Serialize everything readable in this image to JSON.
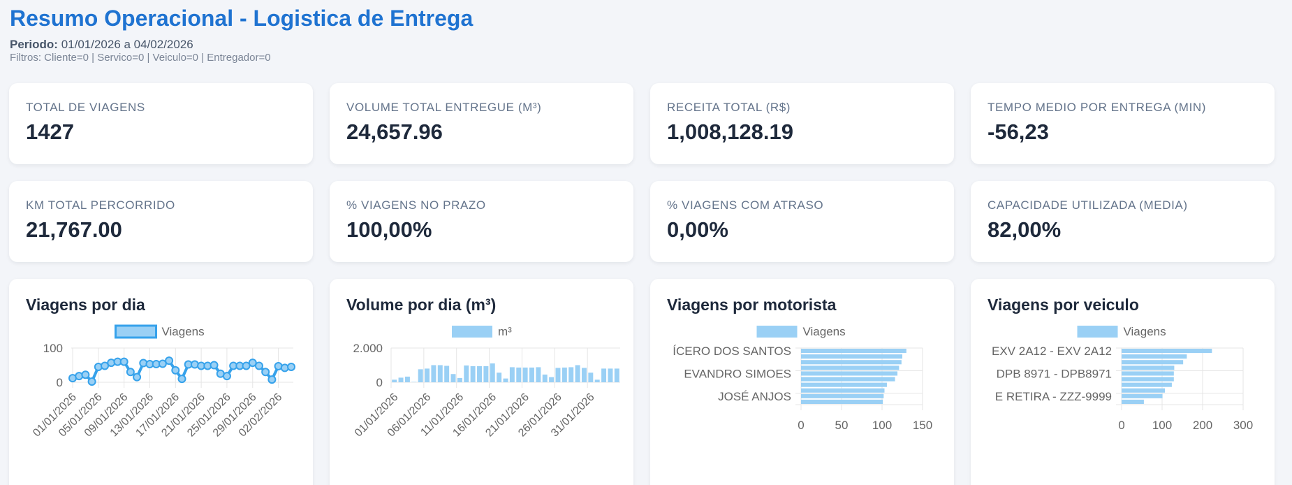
{
  "header": {
    "title": "Resumo Operacional - Logistica de Entrega",
    "period_label": "Periodo:",
    "period_value": "01/01/2026 a 04/02/2026",
    "filters": "Filtros: Cliente=0 | Servico=0 | Veiculo=0 | Entregador=0"
  },
  "kpis": [
    {
      "label": "TOTAL DE VIAGENS",
      "value": "1427"
    },
    {
      "label": "VOLUME TOTAL ENTREGUE (M³)",
      "value": "24,657.96"
    },
    {
      "label": "RECEITA TOTAL (R$)",
      "value": "1,008,128.19"
    },
    {
      "label": "TEMPO MEDIO POR ENTREGA (MIN)",
      "value": "-56,23"
    },
    {
      "label": "KM TOTAL PERCORRIDO",
      "value": "21,767.00"
    },
    {
      "label": "% VIAGENS NO PRAZO",
      "value": "100,00%"
    },
    {
      "label": "% VIAGENS COM ATRASO",
      "value": "0,00%"
    },
    {
      "label": "CAPACIDADE UTILIZADA (MEDIA)",
      "value": "82,00%"
    }
  ],
  "colors": {
    "accent": "#1f73d1",
    "series_line": "#36a2eb",
    "series_fill": "#9ad0f5",
    "background": "#f3f5f9"
  },
  "chart_data": [
    {
      "type": "line",
      "title": "Viagens por dia",
      "legend": [
        "Viagens"
      ],
      "legend_position": "top",
      "xlabel": "",
      "ylabel": "",
      "ylim": [
        0,
        100
      ],
      "yticks": [
        "0",
        "100"
      ],
      "grid": true,
      "x_tick_labels": [
        "01/01/2026",
        "05/01/2026",
        "09/01/2026",
        "13/01/2026",
        "17/01/2026",
        "21/01/2026",
        "25/01/2026",
        "29/01/2026",
        "02/02/2026"
      ],
      "x": [
        "01/01/2026",
        "02/01/2026",
        "03/01/2026",
        "04/01/2026",
        "05/01/2026",
        "06/01/2026",
        "07/01/2026",
        "08/01/2026",
        "09/01/2026",
        "10/01/2026",
        "11/01/2026",
        "12/01/2026",
        "13/01/2026",
        "14/01/2026",
        "15/01/2026",
        "16/01/2026",
        "17/01/2026",
        "18/01/2026",
        "19/01/2026",
        "20/01/2026",
        "21/01/2026",
        "22/01/2026",
        "23/01/2026",
        "24/01/2026",
        "25/01/2026",
        "26/01/2026",
        "27/01/2026",
        "28/01/2026",
        "29/01/2026",
        "30/01/2026",
        "31/01/2026",
        "01/02/2026",
        "02/02/2026",
        "03/02/2026",
        "04/02/2026"
      ],
      "series": [
        {
          "name": "Viagens",
          "values": [
            12,
            18,
            22,
            2,
            45,
            48,
            57,
            60,
            60,
            30,
            15,
            56,
            53,
            53,
            54,
            63,
            35,
            10,
            52,
            52,
            48,
            48,
            50,
            25,
            18,
            48,
            48,
            48,
            57,
            48,
            30,
            8,
            47,
            42,
            45
          ]
        }
      ]
    },
    {
      "type": "bar",
      "title": "Volume por dia (m³)",
      "legend": [
        "m³"
      ],
      "legend_position": "top",
      "xlabel": "",
      "ylabel": "",
      "ylim": [
        0,
        2000
      ],
      "yticks": [
        "0",
        "2.000"
      ],
      "grid": true,
      "x_tick_labels": [
        "01/01/2026",
        "06/01/2026",
        "11/01/2026",
        "16/01/2026",
        "21/01/2026",
        "26/01/2026",
        "31/01/2026"
      ],
      "x": [
        "01/01/2026",
        "02/01/2026",
        "03/01/2026",
        "04/01/2026",
        "05/01/2026",
        "06/01/2026",
        "07/01/2026",
        "08/01/2026",
        "09/01/2026",
        "10/01/2026",
        "11/01/2026",
        "12/01/2026",
        "13/01/2026",
        "14/01/2026",
        "15/01/2026",
        "16/01/2026",
        "17/01/2026",
        "18/01/2026",
        "19/01/2026",
        "20/01/2026",
        "21/01/2026",
        "22/01/2026",
        "23/01/2026",
        "24/01/2026",
        "25/01/2026",
        "26/01/2026",
        "27/01/2026",
        "28/01/2026",
        "29/01/2026",
        "30/01/2026",
        "31/01/2026",
        "01/02/2026",
        "02/02/2026",
        "03/02/2026",
        "04/02/2026"
      ],
      "series": [
        {
          "name": "m³",
          "values": [
            150,
            270,
            330,
            20,
            760,
            800,
            1000,
            1000,
            960,
            480,
            250,
            980,
            940,
            940,
            940,
            1100,
            560,
            220,
            880,
            860,
            860,
            860,
            880,
            450,
            300,
            840,
            860,
            880,
            1000,
            840,
            560,
            150,
            800,
            800,
            800
          ]
        }
      ]
    },
    {
      "type": "bar",
      "orientation": "horizontal",
      "title": "Viagens por motorista",
      "legend": [
        "Viagens"
      ],
      "legend_position": "top",
      "xlim": [
        0,
        150
      ],
      "xticks": [
        "0",
        "50",
        "100",
        "150"
      ],
      "grid": true,
      "y_tick_labels": [
        "ÍCERO DOS SANTOS",
        "EVANDRO SIMOES",
        "JOSÉ ANJOS"
      ],
      "y_tick_label_indices": [
        0,
        4,
        8
      ],
      "series": [
        {
          "name": "Viagens",
          "values": [
            130,
            125,
            124,
            121,
            119,
            116,
            106,
            103,
            102,
            101
          ]
        }
      ]
    },
    {
      "type": "bar",
      "orientation": "horizontal",
      "title": "Viagens por veiculo",
      "legend": [
        "Viagens"
      ],
      "legend_position": "top",
      "xlim": [
        0,
        300
      ],
      "xticks": [
        "0",
        "100",
        "200",
        "300"
      ],
      "grid": true,
      "y_tick_labels": [
        "EXV 2A12 - EXV 2A12",
        "DPB 8971 - DPB8971",
        "E RETIRA - ZZZ-9999"
      ],
      "y_tick_label_indices": [
        0,
        4,
        8
      ],
      "series": [
        {
          "name": "Viagens",
          "values": [
            223,
            161,
            152,
            130,
            129,
            129,
            124,
            107,
            101,
            55
          ]
        }
      ]
    }
  ]
}
